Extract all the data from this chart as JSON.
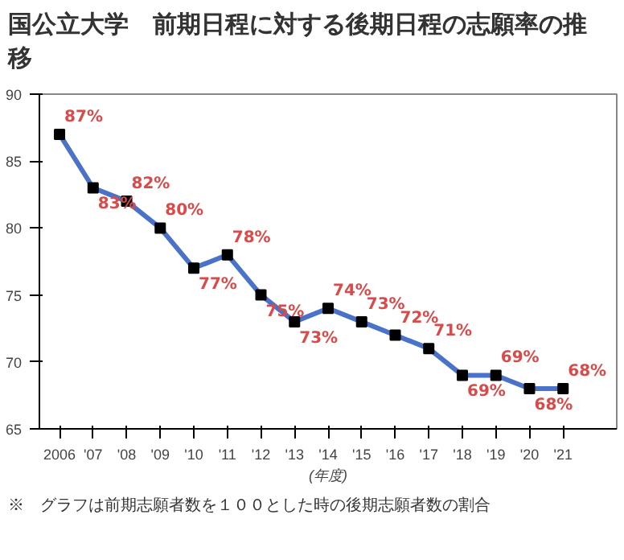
{
  "chart_data": {
    "type": "line",
    "title": "国公立大学　前期日程に対する後期日程の志願率の推移",
    "categories": [
      "2006",
      "'07",
      "'08",
      "'09",
      "'10",
      "'11",
      "'12",
      "'13",
      "'14",
      "'15",
      "'16",
      "'17",
      "'18",
      "'19",
      "'20",
      "'21"
    ],
    "series": [
      {
        "color": "#4a72c8",
        "values": [
          87,
          83,
          82,
          80,
          77,
          78,
          75,
          73,
          74,
          73,
          72,
          71,
          69,
          69,
          68,
          68
        ],
        "value_labels": [
          "87%",
          "83%",
          "82%",
          "80%",
          "77%",
          "78%",
          "75%",
          "73%",
          "74%",
          "73%",
          "72%",
          "71%",
          "69%",
          "69%",
          "68%",
          "68%"
        ]
      }
    ],
    "xlabel": "(年度)",
    "ylim": [
      65,
      90
    ],
    "yticks": [
      65,
      70,
      75,
      80,
      85,
      90
    ],
    "grid": false,
    "marker": "square",
    "line_style": "solid",
    "annotations": [
      "※　グラフは前期志願者数を１００とした時の後期志願者数の割合"
    ]
  }
}
